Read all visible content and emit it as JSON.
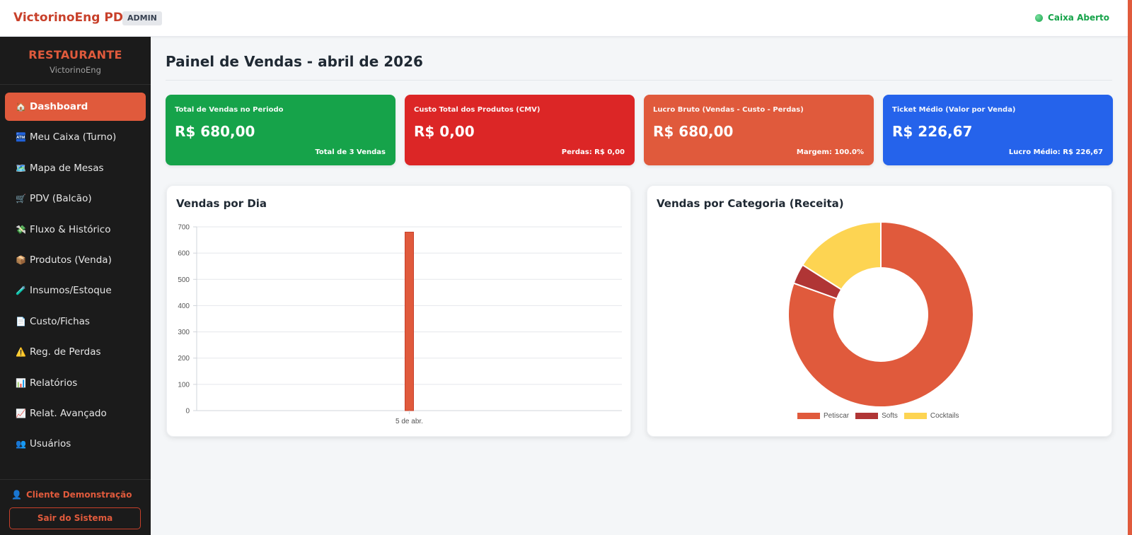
{
  "app": {
    "brand": "VictorinoEng PDV",
    "role": "ADMIN",
    "status": "Caixa Aberto",
    "status_color": "#16a34a"
  },
  "sidebar": {
    "title": "RESTAURANTE",
    "subtitle": "VictorinoEng",
    "items": [
      {
        "icon": "🏠",
        "label": "Dashboard",
        "active": true
      },
      {
        "icon": "🏧",
        "label": "Meu Caixa (Turno)"
      },
      {
        "icon": "🗺️",
        "label": "Mapa de Mesas"
      },
      {
        "icon": "🛒",
        "label": "PDV (Balcão)"
      },
      {
        "icon": "💸",
        "label": "Fluxo & Histórico"
      },
      {
        "icon": "📦",
        "label": "Produtos (Venda)"
      },
      {
        "icon": "🧪",
        "label": "Insumos/Estoque"
      },
      {
        "icon": "📄",
        "label": "Custo/Fichas"
      },
      {
        "icon": "⚠️",
        "label": "Reg. de Perdas"
      },
      {
        "icon": "📊",
        "label": "Relatórios"
      },
      {
        "icon": "📈",
        "label": "Relat. Avançado"
      },
      {
        "icon": "👥",
        "label": "Usuários"
      }
    ],
    "user": "Cliente Demonstração",
    "logout": "Sair do Sistema"
  },
  "main": {
    "title": "Painel de Vendas - abril de 2026",
    "kpis": [
      {
        "label": "Total de Vendas no Periodo",
        "value": "R$ 680,00",
        "foot": "Total de 3 Vendas",
        "color": "#16a34a"
      },
      {
        "label": "Custo Total dos Produtos (CMV)",
        "value": "R$ 0,00",
        "foot": "Perdas: R$ 0,00",
        "color": "#dc2626"
      },
      {
        "label": "Lucro Bruto (Vendas - Custo - Perdas)",
        "value": "R$ 680,00",
        "foot": "Margem: 100.0%",
        "color": "#e05a3c"
      },
      {
        "label": "Ticket Médio (Valor por Venda)",
        "value": "R$ 226,67",
        "foot": "Lucro Médio: R$ 226,67",
        "color": "#2563eb"
      }
    ]
  },
  "chart_data": [
    {
      "type": "bar",
      "title": "Vendas por Dia",
      "categories": [
        "5 de abr."
      ],
      "values": [
        680
      ],
      "ylim": [
        0,
        700
      ],
      "yticks": [
        0,
        100,
        200,
        300,
        400,
        500,
        600,
        700
      ],
      "grid": true,
      "color": "#e05a3c"
    },
    {
      "type": "pie",
      "title": "Vendas por Categoria (Receita)",
      "donut": true,
      "categories": [
        "Petiscar",
        "Softs",
        "Cocktails"
      ],
      "values": [
        80.5,
        3.5,
        16
      ],
      "colors": [
        "#e05a3c",
        "#b03535",
        "#fdd452"
      ],
      "legend": "bottom"
    }
  ]
}
